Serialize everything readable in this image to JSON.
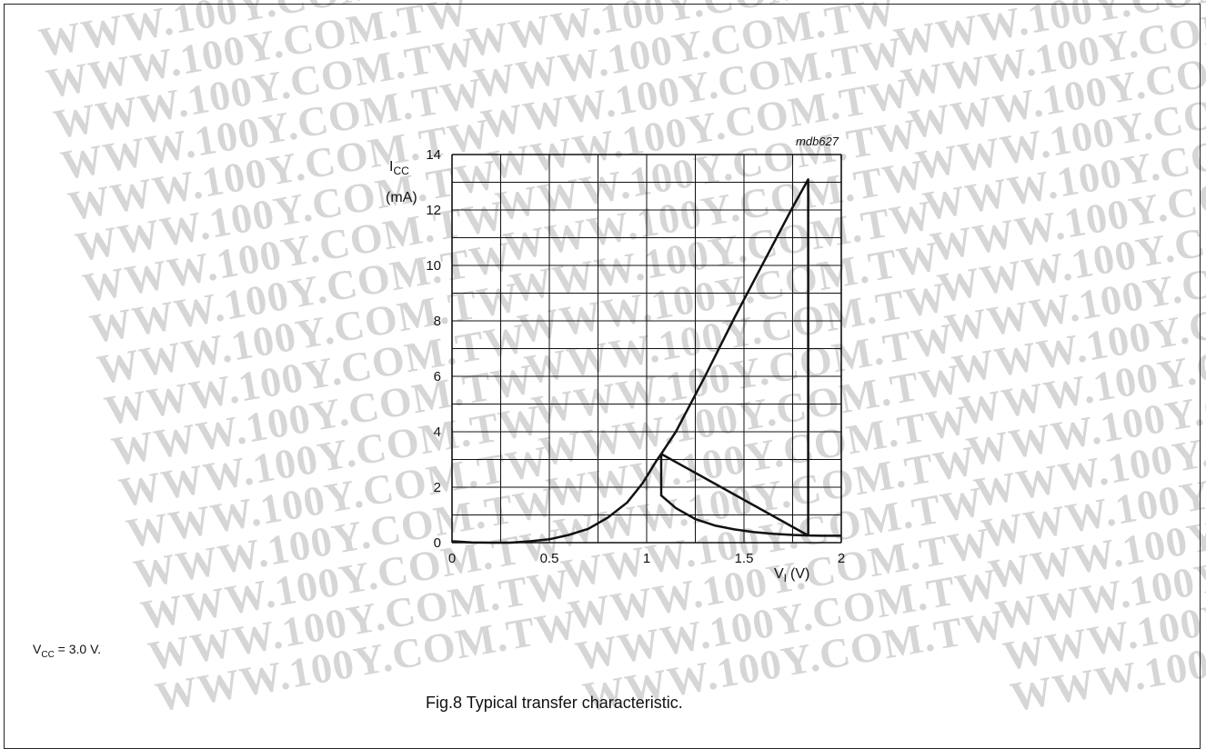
{
  "chart_data": {
    "type": "line",
    "figure_code": "mdb627",
    "ylabel": {
      "symbol": "I",
      "subscript": "CC",
      "unit": "(mA)"
    },
    "xlabel": {
      "symbol": "V",
      "subscript": "I",
      "unit": "(V)"
    },
    "xlim": [
      0,
      2
    ],
    "ylim": [
      0,
      14
    ],
    "x_ticks": [
      "0",
      "0.5",
      "1",
      "1.5",
      "2"
    ],
    "y_ticks": [
      "0",
      "2",
      "4",
      "6",
      "8",
      "10",
      "12",
      "14"
    ],
    "grid": true,
    "series": [
      {
        "points": [
          [
            0.0,
            0.05
          ],
          [
            0.1,
            0.01
          ],
          [
            0.2,
            0.0
          ],
          [
            0.3,
            0.0
          ],
          [
            0.4,
            0.05
          ],
          [
            0.5,
            0.12
          ],
          [
            0.6,
            0.28
          ],
          [
            0.7,
            0.5
          ],
          [
            0.8,
            0.9
          ],
          [
            0.9,
            1.45
          ],
          [
            0.98,
            2.15
          ],
          [
            1.05,
            2.95
          ],
          [
            1.075,
            3.2
          ],
          [
            1.075,
            1.7
          ],
          [
            1.15,
            1.25
          ],
          [
            1.25,
            0.85
          ],
          [
            1.35,
            0.62
          ],
          [
            1.45,
            0.48
          ],
          [
            1.55,
            0.38
          ],
          [
            1.65,
            0.32
          ],
          [
            1.75,
            0.28
          ],
          [
            1.83,
            0.26
          ],
          [
            1.83,
            13.1
          ],
          [
            1.75,
            12.1
          ],
          [
            1.6,
            10.1
          ],
          [
            1.45,
            8.1
          ],
          [
            1.3,
            6.0
          ],
          [
            1.15,
            4.0
          ],
          [
            1.075,
            3.2
          ],
          [
            1.83,
            0.26
          ],
          [
            1.9,
            0.25
          ],
          [
            2.0,
            0.25
          ]
        ]
      }
    ]
  },
  "note": {
    "prefix": "V",
    "subscript": "CC",
    "text": " = 3.0 V."
  },
  "caption": "Fig.8  Typical transfer characteristic."
}
